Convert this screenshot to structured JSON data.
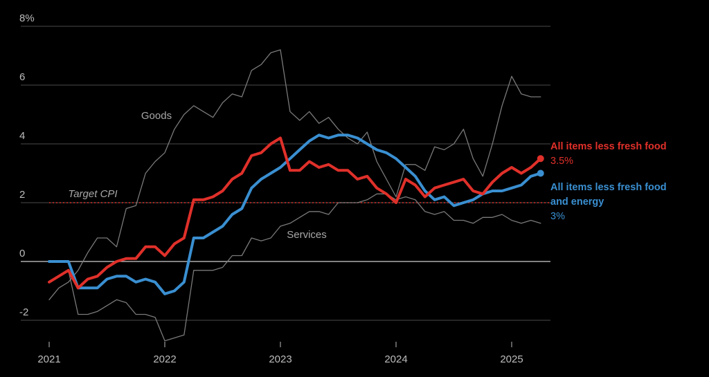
{
  "chart_data": {
    "type": "line",
    "ylim": [
      -2.8,
      8.3
    ],
    "y_ticks": [
      {
        "value": 8,
        "label": "8%"
      },
      {
        "value": 6,
        "label": "6"
      },
      {
        "value": 4,
        "label": "4"
      },
      {
        "value": 2,
        "label": "2"
      },
      {
        "value": 0,
        "label": "0"
      },
      {
        "value": -2,
        "label": "-2"
      }
    ],
    "x_ticks": [
      {
        "value": 2021,
        "label": "2021"
      },
      {
        "value": 2022,
        "label": "2022"
      },
      {
        "value": 2023,
        "label": "2023"
      },
      {
        "value": 2024,
        "label": "2024"
      },
      {
        "value": 2025,
        "label": "2025"
      }
    ],
    "xlim": [
      2020.83,
      2025.33
    ],
    "grid": true,
    "target": {
      "label": "Target CPI",
      "value": 2,
      "color": "#d9302b"
    },
    "series": [
      {
        "key": "goods",
        "name": "Goods",
        "color": "#7a7a7a",
        "width": 1.3,
        "x": [
          2021.0,
          2021.0833,
          2021.1667,
          2021.25,
          2021.3333,
          2021.4167,
          2021.5,
          2021.5833,
          2021.6667,
          2021.75,
          2021.8333,
          2021.9167,
          2022.0,
          2022.0833,
          2022.1667,
          2022.25,
          2022.3333,
          2022.4167,
          2022.5,
          2022.5833,
          2022.6667,
          2022.75,
          2022.8333,
          2022.9167,
          2023.0,
          2023.0833,
          2023.1667,
          2023.25,
          2023.3333,
          2023.4167,
          2023.5,
          2023.5833,
          2023.6667,
          2023.75,
          2023.8333,
          2023.9167,
          2024.0,
          2024.0833,
          2024.1667,
          2024.25,
          2024.3333,
          2024.4167,
          2024.5,
          2024.5833,
          2024.6667,
          2024.75,
          2024.8333,
          2024.9167,
          2025.0,
          2025.0833,
          2025.1667,
          2025.25
        ],
        "y": [
          -1.3,
          -0.9,
          -0.7,
          -0.3,
          0.3,
          0.8,
          0.8,
          0.5,
          1.8,
          1.9,
          3.0,
          3.4,
          3.7,
          4.5,
          5.0,
          5.3,
          5.1,
          4.9,
          5.4,
          5.7,
          5.6,
          6.5,
          6.7,
          7.1,
          7.2,
          5.1,
          4.8,
          5.1,
          4.7,
          4.9,
          4.5,
          4.2,
          4.0,
          4.4,
          3.4,
          2.8,
          2.2,
          3.3,
          3.3,
          3.1,
          3.9,
          3.8,
          4.0,
          4.5,
          3.5,
          2.9,
          4.0,
          5.3,
          6.3,
          5.7,
          5.6,
          5.6
        ]
      },
      {
        "key": "services",
        "name": "Services",
        "color": "#7a7a7a",
        "width": 1.3,
        "x": [
          2021.0,
          2021.0833,
          2021.1667,
          2021.25,
          2021.3333,
          2021.4167,
          2021.5,
          2021.5833,
          2021.6667,
          2021.75,
          2021.8333,
          2021.9167,
          2022.0,
          2022.0833,
          2022.1667,
          2022.25,
          2022.3333,
          2022.4167,
          2022.5,
          2022.5833,
          2022.6667,
          2022.75,
          2022.8333,
          2022.9167,
          2023.0,
          2023.0833,
          2023.1667,
          2023.25,
          2023.3333,
          2023.4167,
          2023.5,
          2023.5833,
          2023.6667,
          2023.75,
          2023.8333,
          2023.9167,
          2024.0,
          2024.0833,
          2024.1667,
          2024.25,
          2024.3333,
          2024.4167,
          2024.5,
          2024.5833,
          2024.6667,
          2024.75,
          2024.8333,
          2024.9167,
          2025.0,
          2025.0833,
          2025.1667,
          2025.25
        ],
        "y": [
          -0.7,
          -0.5,
          -0.3,
          -1.8,
          -1.8,
          -1.7,
          -1.5,
          -1.3,
          -1.4,
          -1.8,
          -1.8,
          -1.9,
          -2.7,
          -2.6,
          -2.5,
          -0.3,
          -0.3,
          -0.3,
          -0.2,
          0.2,
          0.2,
          0.8,
          0.7,
          0.8,
          1.2,
          1.3,
          1.5,
          1.7,
          1.7,
          1.6,
          2.0,
          2.0,
          2.0,
          2.1,
          2.3,
          2.3,
          2.1,
          2.2,
          2.1,
          1.7,
          1.6,
          1.7,
          1.4,
          1.4,
          1.3,
          1.5,
          1.5,
          1.6,
          1.4,
          1.3,
          1.4,
          1.3
        ]
      },
      {
        "key": "core_core",
        "name": "All items less fresh food and energy",
        "name_lines": [
          "All items less fresh food",
          "and energy"
        ],
        "value_label": "3%",
        "color": "#3a8fd1",
        "width": 4,
        "x": [
          2021.0,
          2021.0833,
          2021.1667,
          2021.25,
          2021.3333,
          2021.4167,
          2021.5,
          2021.5833,
          2021.6667,
          2021.75,
          2021.8333,
          2021.9167,
          2022.0,
          2022.0833,
          2022.1667,
          2022.25,
          2022.3333,
          2022.4167,
          2022.5,
          2022.5833,
          2022.6667,
          2022.75,
          2022.8333,
          2022.9167,
          2023.0,
          2023.0833,
          2023.1667,
          2023.25,
          2023.3333,
          2023.4167,
          2023.5,
          2023.5833,
          2023.6667,
          2023.75,
          2023.8333,
          2023.9167,
          2024.0,
          2024.0833,
          2024.1667,
          2024.25,
          2024.3333,
          2024.4167,
          2024.5,
          2024.5833,
          2024.6667,
          2024.75,
          2024.8333,
          2024.9167,
          2025.0,
          2025.0833,
          2025.1667,
          2025.25
        ],
        "y": [
          0.0,
          0.0,
          0.0,
          -0.9,
          -0.9,
          -0.9,
          -0.6,
          -0.5,
          -0.5,
          -0.7,
          -0.6,
          -0.7,
          -1.1,
          -1.0,
          -0.7,
          0.8,
          0.8,
          1.0,
          1.2,
          1.6,
          1.8,
          2.5,
          2.8,
          3.0,
          3.2,
          3.5,
          3.8,
          4.1,
          4.3,
          4.2,
          4.3,
          4.3,
          4.2,
          4.0,
          3.8,
          3.7,
          3.5,
          3.2,
          2.9,
          2.4,
          2.1,
          2.2,
          1.9,
          2.0,
          2.1,
          2.3,
          2.4,
          2.4,
          2.5,
          2.6,
          2.9,
          3.0
        ]
      },
      {
        "key": "core",
        "name": "All items less fresh food",
        "name_lines": [
          "All items less fresh food"
        ],
        "value_label": "3.5%",
        "color": "#e0302a",
        "width": 4,
        "x": [
          2021.0,
          2021.0833,
          2021.1667,
          2021.25,
          2021.3333,
          2021.4167,
          2021.5,
          2021.5833,
          2021.6667,
          2021.75,
          2021.8333,
          2021.9167,
          2022.0,
          2022.0833,
          2022.1667,
          2022.25,
          2022.3333,
          2022.4167,
          2022.5,
          2022.5833,
          2022.6667,
          2022.75,
          2022.8333,
          2022.9167,
          2023.0,
          2023.0833,
          2023.1667,
          2023.25,
          2023.3333,
          2023.4167,
          2023.5,
          2023.5833,
          2023.6667,
          2023.75,
          2023.8333,
          2023.9167,
          2024.0,
          2024.0833,
          2024.1667,
          2024.25,
          2024.3333,
          2024.4167,
          2024.5,
          2024.5833,
          2024.6667,
          2024.75,
          2024.8333,
          2024.9167,
          2025.0,
          2025.0833,
          2025.1667,
          2025.25
        ],
        "y": [
          -0.7,
          -0.5,
          -0.3,
          -0.9,
          -0.6,
          -0.5,
          -0.2,
          0.0,
          0.1,
          0.1,
          0.5,
          0.5,
          0.2,
          0.6,
          0.8,
          2.1,
          2.1,
          2.2,
          2.4,
          2.8,
          3.0,
          3.6,
          3.7,
          4.0,
          4.2,
          3.1,
          3.1,
          3.4,
          3.2,
          3.3,
          3.1,
          3.1,
          2.8,
          2.9,
          2.5,
          2.3,
          2.0,
          2.8,
          2.6,
          2.2,
          2.5,
          2.6,
          2.7,
          2.8,
          2.4,
          2.3,
          2.7,
          3.0,
          3.2,
          3.0,
          3.2,
          3.5
        ]
      }
    ],
    "annotations": [
      {
        "key": "goods",
        "text": "Goods"
      },
      {
        "key": "services",
        "text": "Services"
      },
      {
        "key": "target",
        "text": "Target CPI"
      }
    ]
  }
}
